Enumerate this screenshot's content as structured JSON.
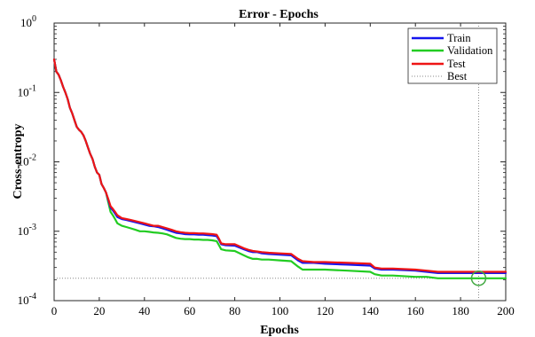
{
  "chart_data": {
    "type": "line",
    "title": "Error - Epochs",
    "xlabel": "Epochs",
    "ylabel": "Cross-entropy",
    "xlim": [
      0,
      200
    ],
    "ylim": [
      0.0001,
      1
    ],
    "yscale": "log",
    "grid": false,
    "legend_position": "top-right",
    "x_ticks": [
      "0",
      "20",
      "40",
      "60",
      "80",
      "100",
      "120",
      "140",
      "160",
      "180",
      "200"
    ],
    "y_ticks": [
      {
        "base": "10",
        "exp": "0",
        "value": 1
      },
      {
        "base": "10",
        "exp": "-1",
        "value": 0.1
      },
      {
        "base": "10",
        "exp": "-2",
        "value": 0.01
      },
      {
        "base": "10",
        "exp": "-3",
        "value": 0.001
      },
      {
        "base": "10",
        "exp": "-4",
        "value": 0.0001
      }
    ],
    "best": {
      "epoch": 188,
      "value": 0.00021,
      "label": "Best",
      "color": "#44aa44"
    },
    "series": [
      {
        "name": "Train",
        "color": "#1515ee",
        "x": [
          0,
          1,
          2,
          3,
          4,
          5,
          6,
          7,
          8,
          9,
          10,
          11,
          12,
          13,
          14,
          15,
          16,
          17,
          18,
          19,
          20,
          21,
          22,
          23,
          24,
          25,
          26,
          27,
          28,
          30,
          32,
          34,
          36,
          38,
          40,
          42,
          44,
          46,
          48,
          50,
          52,
          54,
          56,
          58,
          60,
          62,
          64,
          66,
          68,
          70,
          72,
          73,
          74,
          76,
          80,
          84,
          86,
          88,
          90,
          92,
          95,
          100,
          105,
          108,
          110,
          115,
          120,
          130,
          140,
          142,
          145,
          150,
          160,
          165,
          170,
          180,
          190,
          200
        ],
        "values": [
          0.3,
          0.2,
          0.18,
          0.15,
          0.12,
          0.1,
          0.08,
          0.06,
          0.05,
          0.04,
          0.032,
          0.029,
          0.027,
          0.024,
          0.02,
          0.016,
          0.013,
          0.011,
          0.0085,
          0.007,
          0.0065,
          0.0048,
          0.0042,
          0.0036,
          0.0028,
          0.0022,
          0.002,
          0.0018,
          0.0016,
          0.0015,
          0.00145,
          0.0014,
          0.00135,
          0.0013,
          0.00125,
          0.0012,
          0.00118,
          0.00115,
          0.0011,
          0.00105,
          0.001,
          0.00095,
          0.00093,
          0.00091,
          0.0009,
          0.0009,
          0.00089,
          0.00089,
          0.00088,
          0.00087,
          0.00085,
          0.00075,
          0.00065,
          0.00063,
          0.00062,
          0.00055,
          0.00052,
          0.0005,
          0.0005,
          0.00048,
          0.00047,
          0.00046,
          0.00045,
          0.00038,
          0.00035,
          0.00035,
          0.00034,
          0.00033,
          0.00032,
          0.00029,
          0.00028,
          0.00028,
          0.00027,
          0.00026,
          0.00025,
          0.00025,
          0.00025,
          0.00025
        ]
      },
      {
        "name": "Validation",
        "color": "#22cc22",
        "x": [
          0,
          1,
          2,
          3,
          4,
          5,
          6,
          7,
          8,
          9,
          10,
          11,
          12,
          13,
          14,
          15,
          16,
          17,
          18,
          19,
          20,
          21,
          22,
          23,
          24,
          25,
          26,
          27,
          28,
          30,
          32,
          34,
          36,
          38,
          40,
          42,
          44,
          46,
          48,
          50,
          52,
          54,
          56,
          58,
          60,
          62,
          64,
          66,
          68,
          70,
          72,
          73,
          74,
          76,
          80,
          84,
          86,
          88,
          90,
          92,
          95,
          100,
          105,
          108,
          110,
          115,
          120,
          130,
          140,
          142,
          145,
          150,
          160,
          165,
          170,
          180,
          190,
          200
        ],
        "values": [
          0.3,
          0.2,
          0.18,
          0.15,
          0.12,
          0.1,
          0.08,
          0.06,
          0.05,
          0.04,
          0.032,
          0.029,
          0.027,
          0.024,
          0.02,
          0.016,
          0.013,
          0.011,
          0.0085,
          0.007,
          0.0065,
          0.0048,
          0.0042,
          0.0036,
          0.0026,
          0.0019,
          0.0017,
          0.0015,
          0.0013,
          0.0012,
          0.00115,
          0.0011,
          0.00105,
          0.001,
          0.001,
          0.00098,
          0.00096,
          0.00095,
          0.00093,
          0.0009,
          0.00085,
          0.0008,
          0.00078,
          0.00077,
          0.00077,
          0.00076,
          0.00076,
          0.00075,
          0.00075,
          0.00074,
          0.00072,
          0.00063,
          0.00055,
          0.00053,
          0.00052,
          0.00045,
          0.00042,
          0.0004,
          0.0004,
          0.00039,
          0.00039,
          0.00038,
          0.00037,
          0.00031,
          0.00028,
          0.00028,
          0.00028,
          0.00027,
          0.00026,
          0.00024,
          0.00023,
          0.00023,
          0.00022,
          0.00022,
          0.00021,
          0.00021,
          0.00021,
          0.00021
        ]
      },
      {
        "name": "Test",
        "color": "#ee1515",
        "x": [
          0,
          1,
          2,
          3,
          4,
          5,
          6,
          7,
          8,
          9,
          10,
          11,
          12,
          13,
          14,
          15,
          16,
          17,
          18,
          19,
          20,
          21,
          22,
          23,
          24,
          25,
          26,
          27,
          28,
          30,
          32,
          34,
          36,
          38,
          40,
          42,
          44,
          46,
          48,
          50,
          52,
          54,
          56,
          58,
          60,
          62,
          64,
          66,
          68,
          70,
          72,
          73,
          74,
          76,
          80,
          84,
          86,
          88,
          90,
          92,
          95,
          100,
          105,
          108,
          110,
          115,
          120,
          130,
          140,
          142,
          145,
          150,
          160,
          165,
          170,
          180,
          190,
          200
        ],
        "values": [
          0.3,
          0.2,
          0.18,
          0.15,
          0.12,
          0.1,
          0.08,
          0.06,
          0.05,
          0.04,
          0.032,
          0.029,
          0.027,
          0.024,
          0.02,
          0.016,
          0.013,
          0.011,
          0.0085,
          0.007,
          0.0065,
          0.0048,
          0.0042,
          0.0036,
          0.0029,
          0.0023,
          0.0021,
          0.0019,
          0.0017,
          0.00155,
          0.0015,
          0.00145,
          0.0014,
          0.00135,
          0.0013,
          0.00125,
          0.0012,
          0.0012,
          0.00115,
          0.0011,
          0.00105,
          0.001,
          0.00097,
          0.00095,
          0.00094,
          0.00094,
          0.00093,
          0.00093,
          0.00092,
          0.00091,
          0.00089,
          0.00078,
          0.00067,
          0.00065,
          0.00065,
          0.00057,
          0.00054,
          0.00052,
          0.00051,
          0.0005,
          0.00049,
          0.00048,
          0.00047,
          0.0004,
          0.00037,
          0.00036,
          0.00036,
          0.00035,
          0.00034,
          0.0003,
          0.00029,
          0.00029,
          0.00028,
          0.00027,
          0.00026,
          0.00026,
          0.00026,
          0.00026
        ]
      }
    ]
  }
}
